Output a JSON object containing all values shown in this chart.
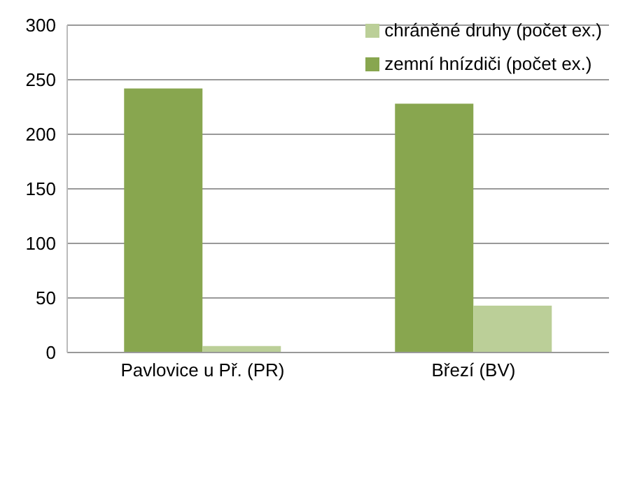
{
  "chart_data": {
    "type": "bar",
    "categories": [
      "Pavlovice u Př. (PR)",
      "Březí (BV)"
    ],
    "series": [
      {
        "name": "zemní hnízdiči (počet ex.)",
        "color": "#88a64f",
        "values": [
          242,
          228
        ]
      },
      {
        "name": "chráněné druhy (počet ex.)",
        "color": "#bbcf98",
        "values": [
          6,
          43
        ]
      }
    ],
    "ylim": [
      0,
      300
    ],
    "yticks": [
      0,
      50,
      100,
      150,
      200,
      250,
      300
    ],
    "grid": "y",
    "legend": "top right"
  }
}
